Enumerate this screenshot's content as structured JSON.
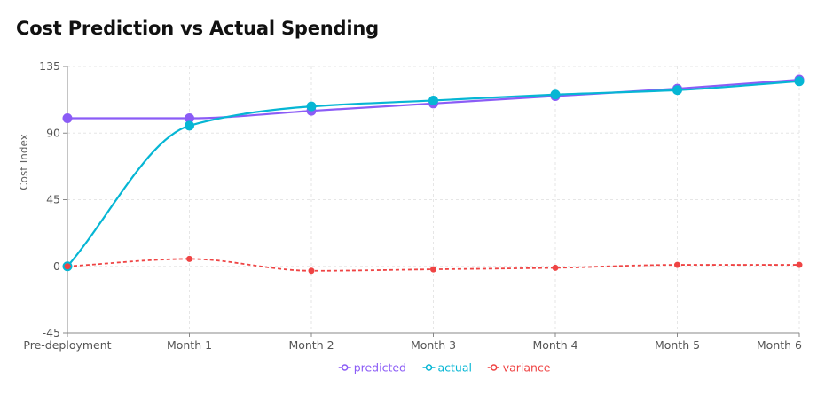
{
  "chart_data": {
    "type": "line",
    "title": "Cost Prediction vs Actual Spending",
    "xlabel": "",
    "ylabel": "Cost Index",
    "categories": [
      "Pre-deployment",
      "Month 1",
      "Month 2",
      "Month 3",
      "Month 4",
      "Month 5",
      "Month 6"
    ],
    "ylim": [
      -45,
      135
    ],
    "yticks": [
      "-45",
      "0",
      "45",
      "90",
      "135"
    ],
    "grid": true,
    "legend_position": "bottom-center",
    "series": [
      {
        "name": "predicted",
        "color": "#8b5cf6",
        "values": [
          100,
          100,
          105,
          110,
          115,
          120,
          126
        ],
        "style": "solid"
      },
      {
        "name": "actual",
        "color": "#06b6d4",
        "values": [
          0,
          95,
          108,
          112,
          116,
          119,
          125
        ],
        "style": "solid"
      },
      {
        "name": "variance",
        "color": "#ef4444",
        "values": [
          0,
          5,
          -3,
          -2,
          -1,
          1,
          1
        ],
        "style": "dashed"
      }
    ]
  }
}
